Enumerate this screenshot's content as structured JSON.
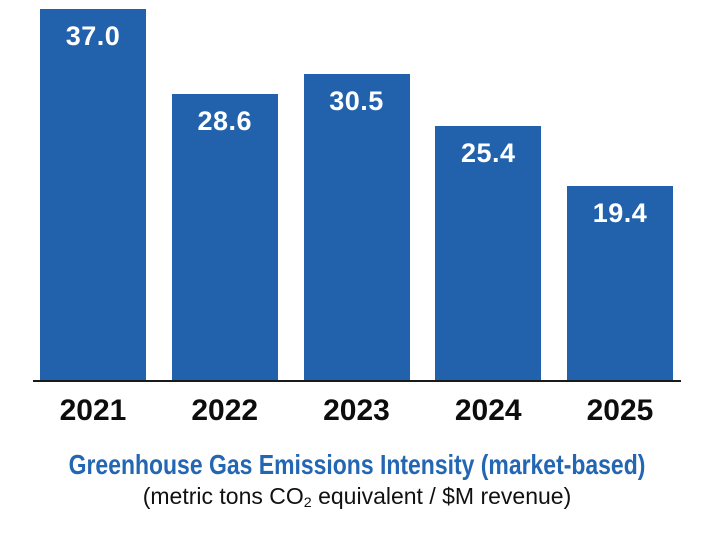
{
  "chart_data": {
    "type": "bar",
    "categories": [
      "2021",
      "2022",
      "2023",
      "2024",
      "2025"
    ],
    "values": [
      37.0,
      28.6,
      30.5,
      25.4,
      19.4
    ],
    "value_label_decimals": 1,
    "title": "Greenhouse Gas Emissions Intensity (market-based)",
    "subtitle": {
      "pre": "(metric tons CO",
      "subscript": "2",
      "post": " equivalent / $M revenue)"
    },
    "xlabel": "",
    "ylabel": "",
    "y_axis_visible": false,
    "grid": false,
    "legend": false,
    "value_labels_position": "inside-top",
    "colors": {
      "bar": "#2262AC",
      "title": "#2366B2",
      "axis": "#1A1A1A",
      "value_label": "#FFFFFF",
      "category_label": "#0D0D0D",
      "subtitle_text": "#111111",
      "background": "#FFFFFF"
    }
  }
}
